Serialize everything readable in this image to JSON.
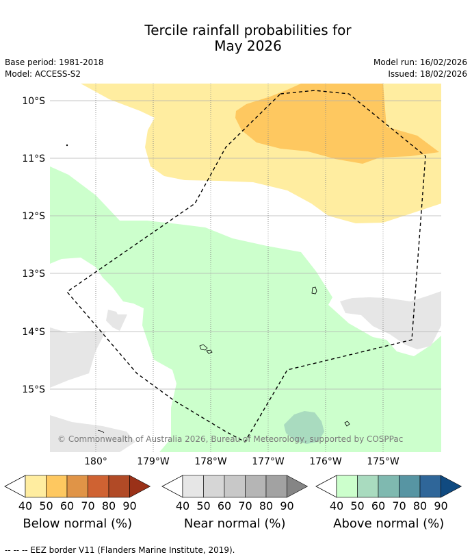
{
  "header": {
    "title_line1": "Tercile rainfall probabilities for",
    "title_line2": "May 2026",
    "base_period": "Base period: 1981-2018",
    "model": "Model: ACCESS-S2",
    "model_run": "Model run: 16/02/2026",
    "issued": "Issued: 18/02/2026"
  },
  "map": {
    "lat_labels": [
      "10°S",
      "11°S",
      "12°S",
      "13°S",
      "14°S",
      "15°S"
    ],
    "lon_labels": [
      "180°",
      "179°W",
      "178°W",
      "177°W",
      "176°W",
      "175°W"
    ],
    "copyright": "© Commonwealth of Australia 2026, Bureau of Meteorology, supported by COSPPac",
    "colors": {
      "below_40": "#ffeda0",
      "below_50": "#fec860",
      "near_40": "#e6e6e6",
      "above_40": "#ccffcc",
      "above_50": "#a9dbbf"
    }
  },
  "colorbars": [
    {
      "label": "Below normal (%)",
      "ticks": [
        "40",
        "50",
        "60",
        "70",
        "80",
        "90"
      ],
      "colors": [
        "#ffeda0",
        "#fec860",
        "#e09447",
        "#cf6232",
        "#b14a26",
        "#9a3118"
      ]
    },
    {
      "label": "Near normal (%)",
      "ticks": [
        "40",
        "50",
        "60",
        "70",
        "80",
        "90"
      ],
      "colors": [
        "#e6e6e6",
        "#d6d6d6",
        "#c8c8c8",
        "#b5b5b5",
        "#a2a2a2",
        "#858585"
      ]
    },
    {
      "label": "Above normal (%)",
      "ticks": [
        "40",
        "50",
        "60",
        "70",
        "80",
        "90"
      ],
      "colors": [
        "#ccffcc",
        "#a9dbbf",
        "#7fb9b0",
        "#5795a3",
        "#2f6699",
        "#104a80"
      ]
    }
  ],
  "footnote": "--  --  -- EEZ border V11 (Flanders Marine Institute, 2019)."
}
